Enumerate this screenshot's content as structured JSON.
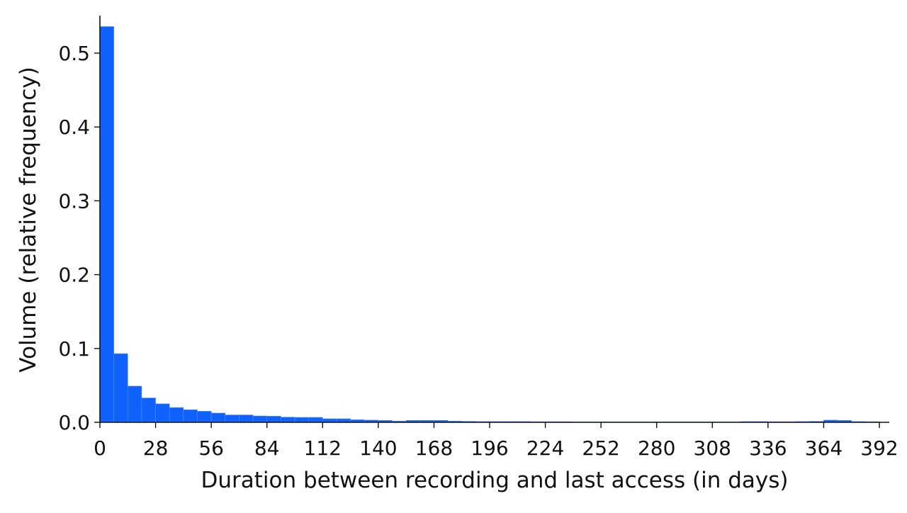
{
  "chart_data": {
    "type": "bar",
    "title": "",
    "xlabel": "Duration between recording and last access (in days)",
    "ylabel": "Volume (relative frequency)",
    "bin_width": 7,
    "xlim": [
      0,
      392
    ],
    "ylim": [
      0,
      0.55
    ],
    "xticks": [
      0,
      28,
      56,
      84,
      112,
      140,
      168,
      196,
      224,
      252,
      280,
      308,
      336,
      364,
      392
    ],
    "yticks": [
      0.0,
      0.1,
      0.2,
      0.3,
      0.4,
      0.5
    ],
    "ytick_labels": [
      "0.0",
      "0.1",
      "0.2",
      "0.3",
      "0.4",
      "0.5"
    ],
    "grid": false,
    "bar_color": "#0f62fe",
    "values": [
      0.536,
      0.093,
      0.049,
      0.033,
      0.025,
      0.02,
      0.017,
      0.015,
      0.0125,
      0.01,
      0.01,
      0.0086,
      0.0083,
      0.007,
      0.0067,
      0.0067,
      0.0048,
      0.0048,
      0.0035,
      0.003,
      0.0026,
      0.0016,
      0.0026,
      0.0026,
      0.0026,
      0.0016,
      0.0013,
      0.001,
      0.001,
      0.001,
      0.001,
      0.0008,
      0.0008,
      0.0008,
      0.0005,
      0.0005,
      0.0005,
      0.0005,
      0.0005,
      0.0005,
      0.0005,
      0.0005,
      0.0005,
      0.0005,
      0.0005,
      0.0005,
      0.001,
      0.001,
      0.0008,
      0.0008,
      0.001,
      0.0013,
      0.003,
      0.0026,
      0.001,
      0.0008
    ]
  }
}
